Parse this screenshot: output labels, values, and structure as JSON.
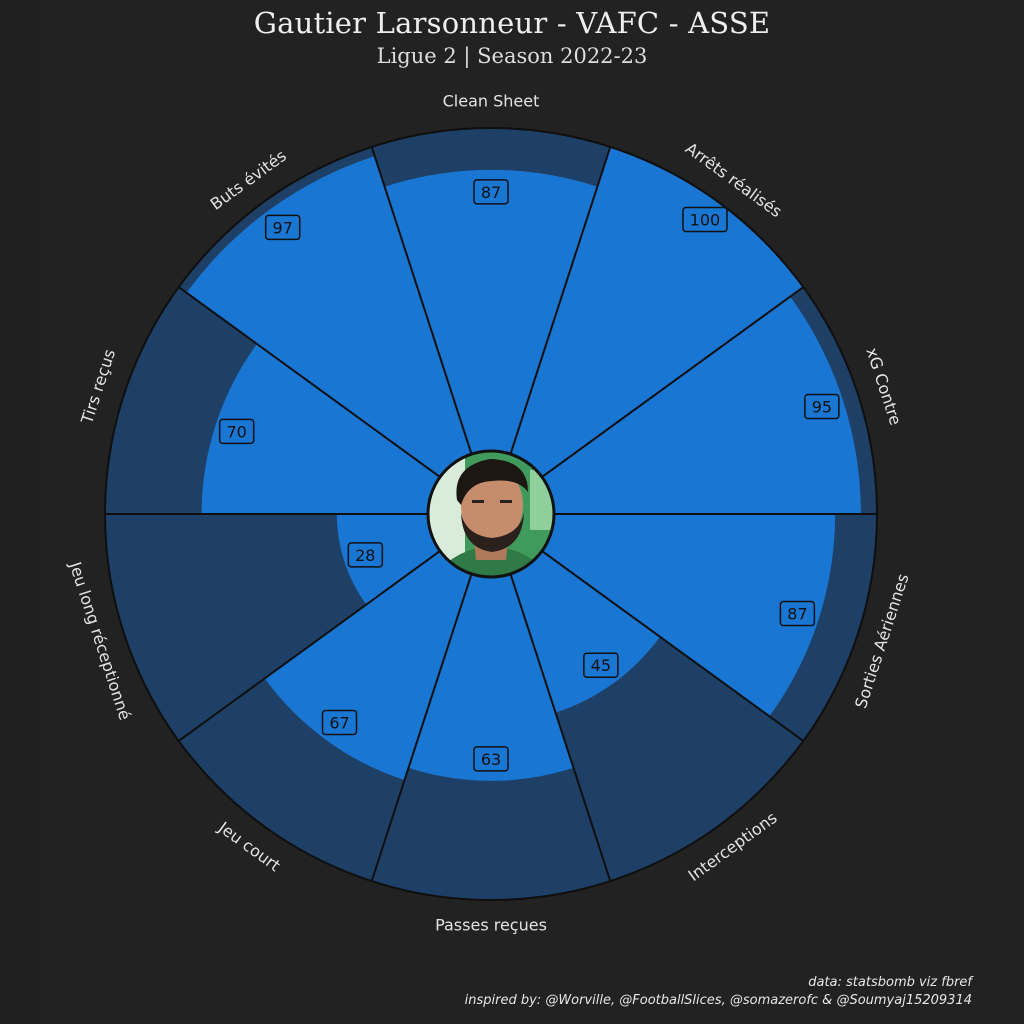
{
  "header": {
    "title": "Gautier Larsonneur - VAFC - ASSE",
    "subtitle": "Ligue 2  | Season 2022-23"
  },
  "credits": {
    "data_source": "data: statsbomb viz fbref",
    "inspired_by": "inspired by: @Worville, @FootballSlices, @somazerofc & @Soumyaj15209314"
  },
  "colors": {
    "background": "#222222",
    "slice_fill": "#1976d2",
    "slice_background": "#1e4066",
    "outline": "#0f0f0f"
  },
  "icons": {
    "center": "player-portrait-icon"
  },
  "chart_data": {
    "type": "pie",
    "title": "Gautier Larsonneur - VAFC - ASSE",
    "subtitle": "Ligue 2  | Season 2022-23",
    "range": [
      0,
      100
    ],
    "categories": [
      "Clean Sheet",
      "Arrêts réalisés",
      "xG Contre",
      "Sorties Aériennes",
      "Interceptions",
      "Passes reçues",
      "Jeu court",
      "Jeu long réceptionné",
      "Tirs reçus",
      "Buts évités"
    ],
    "values": [
      87,
      100,
      95,
      87,
      45,
      63,
      67,
      28,
      70,
      97
    ]
  }
}
